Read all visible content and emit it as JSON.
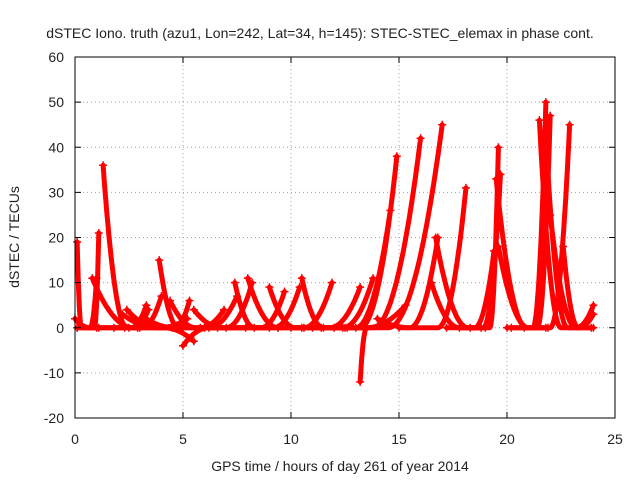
{
  "chart_data": {
    "type": "scatter",
    "title": "dSTEC Iono. truth (azu1, Lon=242, Lat=34, h=145): STEC-STEC_elemax in phase cont.",
    "xlabel": "GPS time / hours of day 261 of year 2014",
    "ylabel": "dSTEC  / TECUs",
    "xlim": [
      0,
      25
    ],
    "ylim": [
      -20,
      60
    ],
    "x_ticks": [
      "0",
      "5",
      "10",
      "15",
      "20",
      "25"
    ],
    "y_ticks": [
      "-20",
      "-10",
      "0",
      "10",
      "20",
      "30",
      "40",
      "50",
      "60"
    ],
    "grid": true,
    "legend": "none",
    "marker": "plus",
    "color": "#ff0000",
    "arcs": [
      {
        "t0": 0.1,
        "tm": 0.3,
        "t1": 1.1,
        "v0": 19,
        "v1": 0
      },
      {
        "t0": 0.0,
        "tm": 0.7,
        "t1": 1.0,
        "v0": 2,
        "v1": 11
      },
      {
        "t0": 0.1,
        "tm": 0.9,
        "t1": 1.1,
        "v0": 0,
        "v1": 21
      },
      {
        "t0": 0.1,
        "tm": 1.4,
        "t1": 2.3,
        "v0": 0,
        "v1": 0
      },
      {
        "t0": 1.3,
        "tm": 2.4,
        "t1": 2.9,
        "v0": 36,
        "v1": 0
      },
      {
        "t0": 0.8,
        "tm": 2.7,
        "t1": 3.4,
        "v0": 11,
        "v1": 4
      },
      {
        "t0": 1.0,
        "tm": 2.6,
        "t1": 3.3,
        "v0": 0,
        "v1": 5
      },
      {
        "t0": 2.2,
        "tm": 3.8,
        "t1": 4.5,
        "v0": 3,
        "v1": 0
      },
      {
        "t0": 1.8,
        "tm": 3.1,
        "t1": 4.0,
        "v0": 0,
        "v1": 7
      },
      {
        "t0": 2.4,
        "tm": 3.9,
        "t1": 5.2,
        "v0": 4,
        "v1": 2
      },
      {
        "t0": 3.0,
        "tm": 4.1,
        "t1": 5.5,
        "v0": 0,
        "v1": -3
      },
      {
        "t0": 2.5,
        "tm": 4.2,
        "t1": 5.0,
        "v0": 0,
        "v1": 0
      },
      {
        "t0": 3.9,
        "tm": 4.8,
        "t1": 5.8,
        "v0": 15,
        "v1": 0
      },
      {
        "t0": 3.3,
        "tm": 4.6,
        "t1": 5.3,
        "v0": 2,
        "v1": 6
      },
      {
        "t0": 4.4,
        "tm": 5.6,
        "t1": 6.6,
        "v0": 6,
        "v1": 0
      },
      {
        "t0": 4.6,
        "tm": 5.8,
        "t1": 6.9,
        "v0": 0,
        "v1": 4
      },
      {
        "t0": 5.0,
        "tm": 6.2,
        "t1": 7.5,
        "v0": -4,
        "v1": 7
      },
      {
        "t0": 5.5,
        "tm": 6.8,
        "t1": 7.9,
        "v0": 4,
        "v1": 0
      },
      {
        "t0": 6.0,
        "tm": 7.0,
        "t1": 8.2,
        "v0": 0,
        "v1": 10
      },
      {
        "t0": 6.2,
        "tm": 7.6,
        "t1": 9.0,
        "v0": 0,
        "v1": 0
      },
      {
        "t0": 7.4,
        "tm": 8.3,
        "t1": 9.4,
        "v0": 10,
        "v1": 0
      },
      {
        "t0": 7.0,
        "tm": 8.6,
        "t1": 9.7,
        "v0": 0,
        "v1": 8
      },
      {
        "t0": 8.0,
        "tm": 9.4,
        "t1": 10.6,
        "v0": 11,
        "v1": 0
      },
      {
        "t0": 8.3,
        "tm": 9.2,
        "t1": 10.4,
        "v0": 0,
        "v1": 9
      },
      {
        "t0": 9.0,
        "tm": 10.2,
        "t1": 11.4,
        "v0": 9,
        "v1": 0
      },
      {
        "t0": 9.4,
        "tm": 10.6,
        "t1": 11.9,
        "v0": 0,
        "v1": 10
      },
      {
        "t0": 10.0,
        "tm": 11.2,
        "t1": 12.6,
        "v0": 0,
        "v1": 0
      },
      {
        "t0": 10.5,
        "tm": 11.5,
        "t1": 12.4,
        "v0": 11,
        "v1": 0
      },
      {
        "t0": 10.5,
        "tm": 11.8,
        "t1": 13.2,
        "v0": 0,
        "v1": 9
      },
      {
        "t0": 11.0,
        "tm": 12.4,
        "t1": 13.8,
        "v0": 0,
        "v1": 11
      },
      {
        "t0": 11.5,
        "tm": 13.0,
        "t1": 14.6,
        "v0": 0,
        "v1": 26
      },
      {
        "t0": 12.0,
        "tm": 13.2,
        "t1": 14.9,
        "v0": 0,
        "v1": 38
      },
      {
        "t0": 13.2,
        "tm": 13.5,
        "t1": 15.3,
        "v0": -12,
        "v1": 5
      },
      {
        "t0": 12.5,
        "tm": 13.8,
        "t1": 16.0,
        "v0": 0,
        "v1": 42
      },
      {
        "t0": 13.0,
        "tm": 14.5,
        "t1": 17.0,
        "v0": 0,
        "v1": 45
      },
      {
        "t0": 14.0,
        "tm": 15.5,
        "t1": 16.8,
        "v0": 2,
        "v1": 20
      },
      {
        "t0": 15.0,
        "tm": 16.8,
        "t1": 18.1,
        "v0": 0,
        "v1": 31
      },
      {
        "t0": 16.5,
        "tm": 17.8,
        "t1": 18.8,
        "v0": 10,
        "v1": 0
      },
      {
        "t0": 16.7,
        "tm": 18.2,
        "t1": 19.0,
        "v0": 20,
        "v1": 0
      },
      {
        "t0": 17.2,
        "tm": 18.5,
        "t1": 19.4,
        "v0": 0,
        "v1": 17
      },
      {
        "t0": 17.8,
        "tm": 18.9,
        "t1": 19.7,
        "v0": 0,
        "v1": 34
      },
      {
        "t0": 18.3,
        "tm": 19.2,
        "t1": 19.6,
        "v0": 0,
        "v1": 40
      },
      {
        "t0": 19.5,
        "tm": 20.9,
        "t1": 21.8,
        "v0": 33,
        "v1": 0
      },
      {
        "t0": 19.6,
        "tm": 21.0,
        "t1": 21.9,
        "v0": 18,
        "v1": 0
      },
      {
        "t0": 20.0,
        "tm": 21.4,
        "t1": 22.0,
        "v0": 0,
        "v1": 47
      },
      {
        "t0": 20.2,
        "tm": 21.2,
        "t1": 21.8,
        "v0": 0,
        "v1": 50
      },
      {
        "t0": 21.5,
        "tm": 22.5,
        "t1": 23.9,
        "v0": 46,
        "v1": 0
      },
      {
        "t0": 21.8,
        "tm": 22.8,
        "t1": 24.0,
        "v0": 42,
        "v1": 0
      },
      {
        "t0": 20.8,
        "tm": 22.0,
        "t1": 22.9,
        "v0": 0,
        "v1": 45
      },
      {
        "t0": 22.0,
        "tm": 23.2,
        "t1": 24.0,
        "v0": 25,
        "v1": 5
      },
      {
        "t0": 22.6,
        "tm": 23.3,
        "t1": 24.0,
        "v0": 18,
        "v1": 3
      }
    ]
  }
}
